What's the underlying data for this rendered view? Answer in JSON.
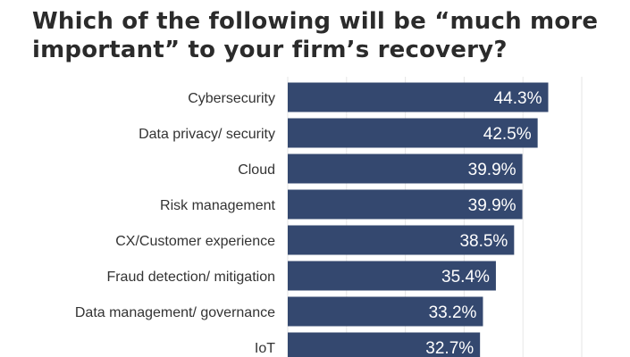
{
  "chart_data": {
    "type": "bar",
    "orientation": "horizontal",
    "title": "Which of the following will be “much more important” to your firm’s recovery?",
    "categories": [
      "Cybersecurity",
      "Data privacy/ security",
      "Cloud",
      "Risk management",
      "CX/Customer experience",
      "Fraud detection/ mitigation",
      "Data management/ governance",
      "IoT"
    ],
    "values": [
      44.3,
      42.5,
      39.9,
      39.9,
      38.5,
      35.4,
      33.2,
      32.7
    ],
    "value_labels": [
      "44.3%",
      "42.5%",
      "39.9%",
      "39.9%",
      "38.5%",
      "35.4%",
      "33.2%",
      "32.7%"
    ],
    "xlim": [
      0,
      50
    ],
    "grid": true,
    "bar_color": "#34486f",
    "label_color": "#ffffff"
  }
}
